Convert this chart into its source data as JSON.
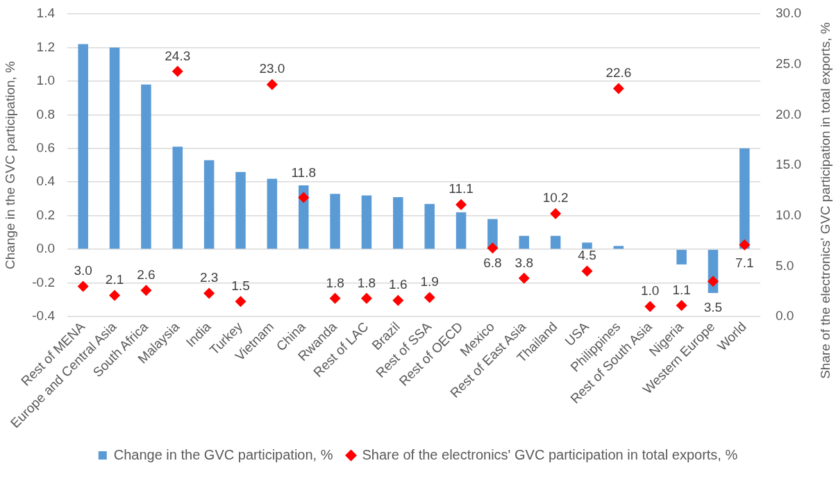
{
  "chart_data": {
    "type": "bar",
    "categories": [
      "Rest of MENA",
      "Europe and Central Asia",
      "South Africa",
      "Malaysia",
      "India",
      "Turkey",
      "Vietnam",
      "China",
      "Rwanda",
      "Rest of LAC",
      "Brazil",
      "Rest of SSA",
      "Rest of OECD",
      "Mexico",
      "Rest of East Asia",
      "Thailand",
      "USA",
      "Philippines",
      "Rest of South Asia",
      "Nigeria",
      "Western Europe",
      "World"
    ],
    "ylabel": "Change in the GVC participation, %",
    "y2label": "Share of the electronics' GVC participation in total exports, %",
    "ylim": [
      -0.4,
      1.4
    ],
    "yticks": [
      -0.4,
      -0.2,
      {
        "value": 0,
        "label": "0.0"
      },
      0.2,
      0.4,
      0.6,
      0.8,
      {
        "value": 1,
        "label": "1.0"
      },
      1.2,
      1.4
    ],
    "y2lim": [
      0,
      30
    ],
    "y2ticks": [
      {
        "value": 0,
        "label": "0.0"
      },
      {
        "value": 5,
        "label": "5.0"
      },
      {
        "value": 10,
        "label": "10.0"
      },
      {
        "value": 15,
        "label": "15.0"
      },
      {
        "value": 20,
        "label": "20.0"
      },
      {
        "value": 25,
        "label": "25.0"
      },
      {
        "value": 30,
        "label": "30.0"
      }
    ],
    "grid": "y",
    "legend": "bottom",
    "series": [
      {
        "name": "Change in the GVC participation, %",
        "color": "#5b9bd5",
        "values": [
          1.22,
          1.2,
          0.98,
          0.61,
          0.53,
          0.46,
          0.42,
          0.38,
          0.33,
          0.32,
          0.31,
          0.27,
          0.22,
          0.18,
          0.08,
          0.08,
          0.04,
          0.02,
          null,
          -0.09,
          -0.26,
          0.6
        ]
      },
      {
        "name": "Share of the electronics' GVC participation in total exports, %",
        "type": "scatter",
        "axis": "y2",
        "marker": "diamond",
        "color": "#ff0000",
        "values": [
          3.0,
          2.1,
          2.6,
          24.3,
          2.3,
          1.5,
          23.0,
          11.8,
          1.8,
          1.8,
          1.6,
          1.9,
          11.1,
          6.8,
          3.8,
          10.2,
          4.5,
          22.6,
          1.0,
          1.1,
          3.5,
          7.1
        ],
        "value_labels": [
          "3.0",
          "2.1",
          "2.6",
          "24.3",
          "2.3",
          "1.5",
          "23.0",
          "11.8",
          "1.8",
          "1.8",
          "1.6",
          "1.9",
          "11.1",
          "6.8",
          "3.8",
          "10.2",
          "4.5",
          "22.6",
          "1.0",
          "1.1",
          "3.5",
          "7.1"
        ]
      }
    ]
  }
}
